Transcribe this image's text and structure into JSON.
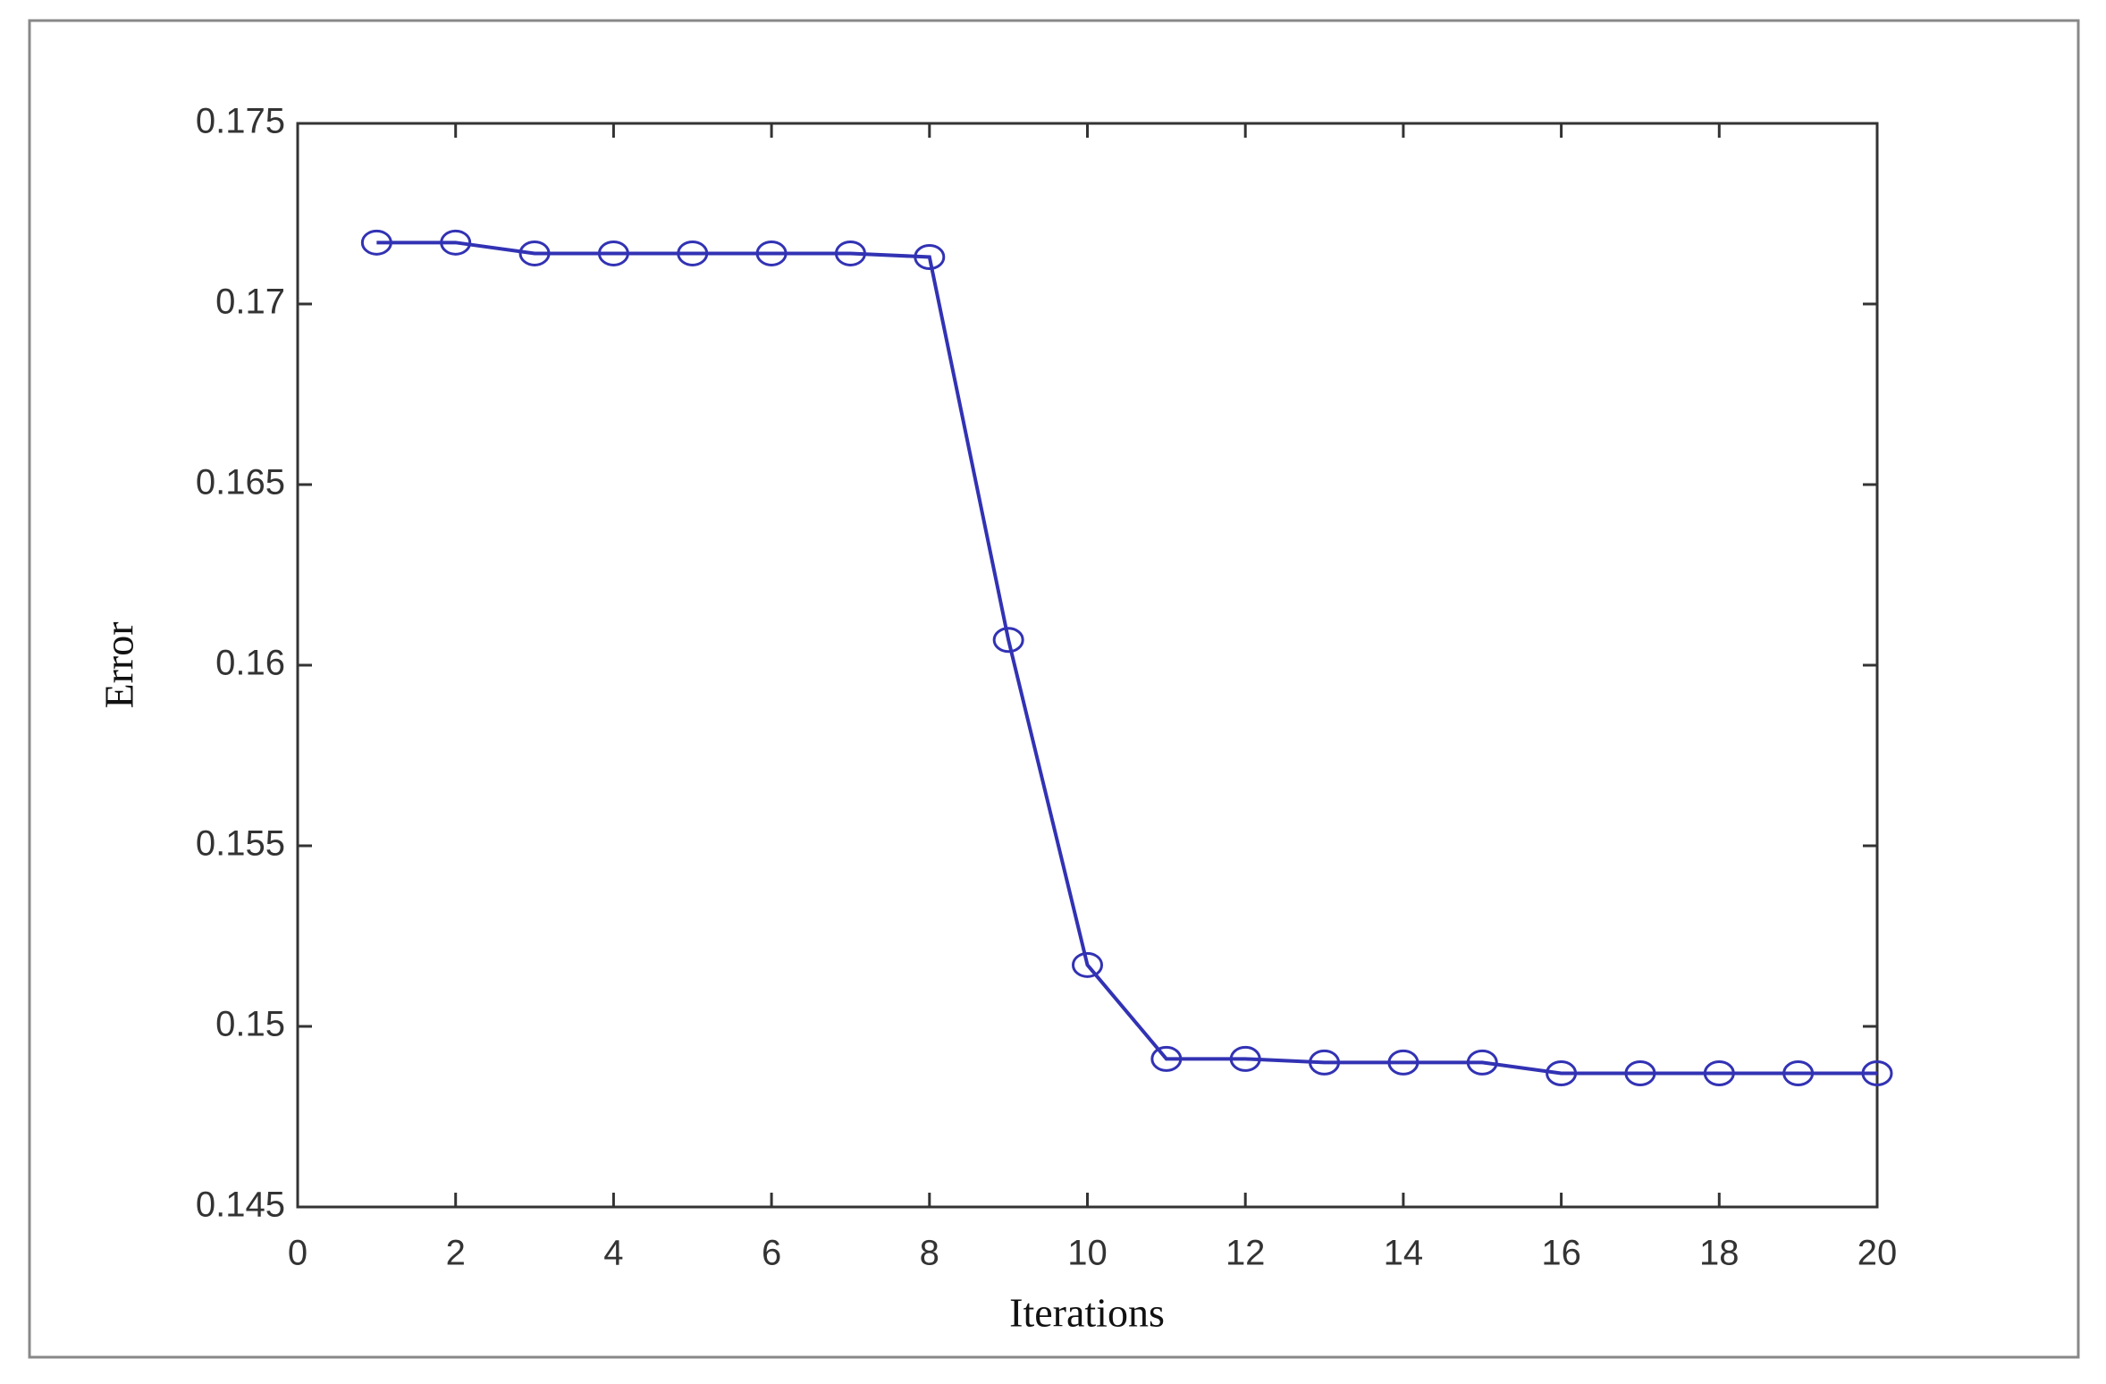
{
  "chart_data": {
    "type": "line",
    "xlabel": "Iterations",
    "ylabel": "Error",
    "x": [
      1,
      2,
      3,
      4,
      5,
      6,
      7,
      8,
      9,
      10,
      11,
      12,
      13,
      14,
      15,
      16,
      17,
      18,
      19,
      20
    ],
    "series": [
      {
        "name": "Error",
        "color": "#3232b4",
        "values": [
          0.1717,
          0.1717,
          0.1714,
          0.1714,
          0.1714,
          0.1714,
          0.1714,
          0.1713,
          0.1607,
          0.1517,
          0.1491,
          0.1491,
          0.149,
          0.149,
          0.149,
          0.1487,
          0.1487,
          0.1487,
          0.1487,
          0.1487
        ]
      }
    ],
    "xlim": [
      0,
      20
    ],
    "xticks": [
      0,
      2,
      4,
      6,
      8,
      10,
      12,
      14,
      16,
      18,
      20
    ],
    "ylim": [
      0.145,
      0.175
    ],
    "yticks": [
      0.145,
      0.15,
      0.155,
      0.16,
      0.165,
      0.17,
      0.175
    ],
    "grid": false,
    "marker": "circle"
  }
}
